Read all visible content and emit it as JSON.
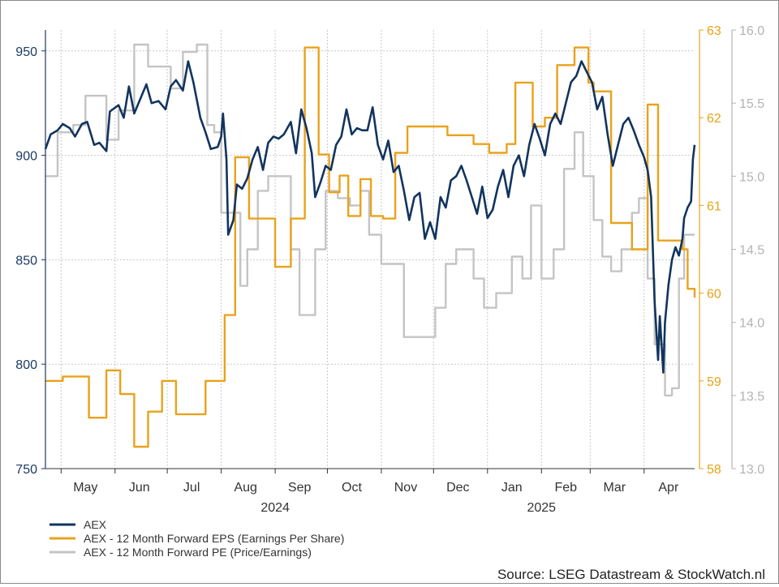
{
  "chart_data": {
    "type": "line",
    "source": "Source: LSEG Datastream & StockWatch.nl",
    "x_range": [
      "2024-04-22",
      "2025-04-30"
    ],
    "month_labels": [
      {
        "label": "May",
        "date": "2024-05-15"
      },
      {
        "label": "Jun",
        "date": "2024-06-15"
      },
      {
        "label": "Jul",
        "date": "2024-07-15"
      },
      {
        "label": "Aug",
        "date": "2024-08-15"
      },
      {
        "label": "Sep",
        "date": "2024-09-15"
      },
      {
        "label": "Oct",
        "date": "2024-10-15"
      },
      {
        "label": "Nov",
        "date": "2024-11-15"
      },
      {
        "label": "Dec",
        "date": "2024-12-15"
      },
      {
        "label": "Jan",
        "date": "2025-01-15"
      },
      {
        "label": "Feb",
        "date": "2025-02-15"
      },
      {
        "label": "Mar",
        "date": "2025-03-15"
      },
      {
        "label": "Apr",
        "date": "2025-04-15"
      }
    ],
    "month_boundaries": [
      "2024-05-01",
      "2024-06-01",
      "2024-07-01",
      "2024-08-01",
      "2024-09-01",
      "2024-10-01",
      "2024-11-01",
      "2024-12-01",
      "2025-01-01",
      "2025-02-01",
      "2025-03-01",
      "2025-04-01"
    ],
    "year_labels": [
      {
        "label": "2024",
        "date": "2024-09-01"
      },
      {
        "label": "2025",
        "date": "2025-02-01"
      }
    ],
    "axes": {
      "left": {
        "min": 750,
        "max": 960,
        "ticks": [
          750,
          800,
          850,
          900,
          950
        ],
        "color": "#1b3a63"
      },
      "right_eps": {
        "min": 58,
        "max": 63,
        "ticks": [
          58,
          59,
          60,
          61,
          62,
          63
        ],
        "color": "#e8a317"
      },
      "right_pe": {
        "min": 13.0,
        "max": 16.0,
        "ticks": [
          "13.0",
          "13.5",
          "14.0",
          "14.5",
          "15.0",
          "15.5",
          "16.0"
        ],
        "color": "#b3b3b3"
      }
    },
    "grid": true,
    "legend_position": "bottom-left",
    "series": [
      {
        "name": "AEX",
        "axis": "left",
        "color": "#12345e",
        "points": [
          [
            "2024-04-22",
            903
          ],
          [
            "2024-04-25",
            910
          ],
          [
            "2024-04-29",
            912
          ],
          [
            "2024-05-02",
            915
          ],
          [
            "2024-05-06",
            913
          ],
          [
            "2024-05-09",
            909
          ],
          [
            "2024-05-13",
            915
          ],
          [
            "2024-05-16",
            916
          ],
          [
            "2024-05-20",
            905
          ],
          [
            "2024-05-23",
            906
          ],
          [
            "2024-05-27",
            902
          ],
          [
            "2024-05-29",
            921
          ],
          [
            "2024-06-03",
            924
          ],
          [
            "2024-06-06",
            918
          ],
          [
            "2024-06-09",
            933
          ],
          [
            "2024-06-12",
            920
          ],
          [
            "2024-06-16",
            928
          ],
          [
            "2024-06-19",
            934
          ],
          [
            "2024-06-22",
            925
          ],
          [
            "2024-06-26",
            926
          ],
          [
            "2024-06-30",
            922
          ],
          [
            "2024-07-03",
            933
          ],
          [
            "2024-07-06",
            936
          ],
          [
            "2024-07-10",
            931
          ],
          [
            "2024-07-13",
            945
          ],
          [
            "2024-07-16",
            935
          ],
          [
            "2024-07-20",
            918
          ],
          [
            "2024-07-23",
            911
          ],
          [
            "2024-07-26",
            903
          ],
          [
            "2024-07-30",
            904
          ],
          [
            "2024-08-01",
            909
          ],
          [
            "2024-08-02",
            920
          ],
          [
            "2024-08-04",
            898
          ],
          [
            "2024-08-05",
            862
          ],
          [
            "2024-08-08",
            869
          ],
          [
            "2024-08-10",
            886
          ],
          [
            "2024-08-13",
            884
          ],
          [
            "2024-08-16",
            889
          ],
          [
            "2024-08-19",
            898
          ],
          [
            "2024-08-22",
            904
          ],
          [
            "2024-08-25",
            893
          ],
          [
            "2024-08-28",
            906
          ],
          [
            "2024-08-31",
            909
          ],
          [
            "2024-09-03",
            908
          ],
          [
            "2024-09-06",
            910
          ],
          [
            "2024-09-10",
            916
          ],
          [
            "2024-09-13",
            901
          ],
          [
            "2024-09-16",
            922
          ],
          [
            "2024-09-19",
            913
          ],
          [
            "2024-09-22",
            901
          ],
          [
            "2024-09-24",
            880
          ],
          [
            "2024-09-27",
            887
          ],
          [
            "2024-09-30",
            895
          ],
          [
            "2024-10-03",
            893
          ],
          [
            "2024-10-06",
            905
          ],
          [
            "2024-10-09",
            909
          ],
          [
            "2024-10-12",
            922
          ],
          [
            "2024-10-15",
            910
          ],
          [
            "2024-10-18",
            913
          ],
          [
            "2024-10-21",
            912
          ],
          [
            "2024-10-24",
            912
          ],
          [
            "2024-10-27",
            923
          ],
          [
            "2024-10-30",
            905
          ],
          [
            "2024-11-02",
            898
          ],
          [
            "2024-11-05",
            907
          ],
          [
            "2024-11-08",
            892
          ],
          [
            "2024-11-11",
            895
          ],
          [
            "2024-11-14",
            883
          ],
          [
            "2024-11-17",
            869
          ],
          [
            "2024-11-20",
            880
          ],
          [
            "2024-11-23",
            882
          ],
          [
            "2024-11-26",
            860
          ],
          [
            "2024-11-29",
            868
          ],
          [
            "2024-12-02",
            860
          ],
          [
            "2024-12-05",
            880
          ],
          [
            "2024-12-08",
            875
          ],
          [
            "2024-12-11",
            888
          ],
          [
            "2024-12-14",
            890
          ],
          [
            "2024-12-17",
            895
          ],
          [
            "2024-12-20",
            888
          ],
          [
            "2024-12-23",
            880
          ],
          [
            "2024-12-26",
            872
          ],
          [
            "2024-12-29",
            885
          ],
          [
            "2025-01-01",
            870
          ],
          [
            "2025-01-04",
            874
          ],
          [
            "2025-01-07",
            885
          ],
          [
            "2025-01-10",
            893
          ],
          [
            "2025-01-13",
            880
          ],
          [
            "2025-01-16",
            895
          ],
          [
            "2025-01-19",
            900
          ],
          [
            "2025-01-22",
            890
          ],
          [
            "2025-01-25",
            905
          ],
          [
            "2025-01-28",
            915
          ],
          [
            "2025-01-31",
            908
          ],
          [
            "2025-02-03",
            900
          ],
          [
            "2025-02-06",
            915
          ],
          [
            "2025-02-09",
            920
          ],
          [
            "2025-02-12",
            915
          ],
          [
            "2025-02-15",
            925
          ],
          [
            "2025-02-18",
            935
          ],
          [
            "2025-02-21",
            938
          ],
          [
            "2025-02-24",
            945
          ],
          [
            "2025-02-27",
            940
          ],
          [
            "2025-03-02",
            935
          ],
          [
            "2025-03-05",
            922
          ],
          [
            "2025-03-08",
            928
          ],
          [
            "2025-03-11",
            910
          ],
          [
            "2025-03-14",
            895
          ],
          [
            "2025-03-17",
            905
          ],
          [
            "2025-03-20",
            915
          ],
          [
            "2025-03-23",
            918
          ],
          [
            "2025-03-26",
            912
          ],
          [
            "2025-03-29",
            905
          ],
          [
            "2025-04-01",
            899
          ],
          [
            "2025-04-03",
            893
          ],
          [
            "2025-04-05",
            880
          ],
          [
            "2025-04-07",
            830
          ],
          [
            "2025-04-09",
            802
          ],
          [
            "2025-04-10",
            823
          ],
          [
            "2025-04-12",
            796
          ],
          [
            "2025-04-13",
            820
          ],
          [
            "2025-04-15",
            838
          ],
          [
            "2025-04-17",
            850
          ],
          [
            "2025-04-19",
            856
          ],
          [
            "2025-04-21",
            852
          ],
          [
            "2025-04-23",
            860
          ],
          [
            "2025-04-24",
            870
          ],
          [
            "2025-04-26",
            875
          ],
          [
            "2025-04-28",
            878
          ],
          [
            "2025-04-29",
            898
          ],
          [
            "2025-04-30",
            905
          ]
        ]
      },
      {
        "name": "AEX - 12 Month Forward EPS (Earnings Per Share)",
        "axis": "right_eps",
        "color": "#e9a21b",
        "step": true,
        "points": [
          [
            "2024-04-22",
            59.0
          ],
          [
            "2024-05-02",
            59.05
          ],
          [
            "2024-05-17",
            58.58
          ],
          [
            "2024-05-27",
            59.12
          ],
          [
            "2024-06-04",
            58.85
          ],
          [
            "2024-06-12",
            58.25
          ],
          [
            "2024-06-20",
            58.65
          ],
          [
            "2024-06-28",
            59.0
          ],
          [
            "2024-07-06",
            58.62
          ],
          [
            "2024-07-14",
            58.62
          ],
          [
            "2024-07-23",
            59.0
          ],
          [
            "2024-07-31",
            59.0
          ],
          [
            "2024-08-03",
            59.75
          ],
          [
            "2024-08-09",
            61.55
          ],
          [
            "2024-08-17",
            60.85
          ],
          [
            "2024-09-01",
            60.3
          ],
          [
            "2024-09-10",
            60.85
          ],
          [
            "2024-09-18",
            62.8
          ],
          [
            "2024-09-26",
            61.58
          ],
          [
            "2024-10-02",
            61.15
          ],
          [
            "2024-10-08",
            61.34
          ],
          [
            "2024-10-13",
            60.88
          ],
          [
            "2024-10-20",
            61.3
          ],
          [
            "2024-10-26",
            60.88
          ],
          [
            "2024-11-02",
            60.85
          ],
          [
            "2024-11-09",
            61.6
          ],
          [
            "2024-11-16",
            61.9
          ],
          [
            "2024-11-24",
            61.9
          ],
          [
            "2024-12-02",
            61.9
          ],
          [
            "2024-12-09",
            61.8
          ],
          [
            "2024-12-17",
            61.8
          ],
          [
            "2024-12-24",
            61.7
          ],
          [
            "2025-01-02",
            61.6
          ],
          [
            "2025-01-12",
            61.7
          ],
          [
            "2025-01-16",
            61.7
          ],
          [
            "2025-01-17",
            62.4
          ],
          [
            "2025-01-27",
            61.9
          ],
          [
            "2025-02-03",
            62.0
          ],
          [
            "2025-02-10",
            62.6
          ],
          [
            "2025-02-20",
            62.8
          ],
          [
            "2025-02-28",
            62.4
          ],
          [
            "2025-03-03",
            62.3
          ],
          [
            "2025-03-08",
            62.3
          ],
          [
            "2025-03-13",
            60.8
          ],
          [
            "2025-03-19",
            60.8
          ],
          [
            "2025-03-25",
            60.5
          ],
          [
            "2025-03-30",
            60.5
          ],
          [
            "2025-04-03",
            62.15
          ],
          [
            "2025-04-09",
            60.6
          ],
          [
            "2025-04-21",
            60.6
          ],
          [
            "2025-04-23",
            60.5
          ],
          [
            "2025-04-26",
            60.05
          ],
          [
            "2025-04-30",
            59.95
          ]
        ]
      },
      {
        "name": "AEX - 12 Month Forward PE (Price/Earnings)",
        "axis": "right_pe",
        "color": "#c4c4c4",
        "step": true,
        "points": [
          [
            "2024-04-22",
            15.0
          ],
          [
            "2024-04-29",
            15.3
          ],
          [
            "2024-05-08",
            15.35
          ],
          [
            "2024-05-15",
            15.55
          ],
          [
            "2024-05-27",
            15.25
          ],
          [
            "2024-06-03",
            15.45
          ],
          [
            "2024-06-12",
            15.9
          ],
          [
            "2024-06-20",
            15.75
          ],
          [
            "2024-06-28",
            15.75
          ],
          [
            "2024-07-03",
            15.6
          ],
          [
            "2024-07-10",
            15.85
          ],
          [
            "2024-07-18",
            15.9
          ],
          [
            "2024-07-24",
            15.35
          ],
          [
            "2024-07-28",
            15.3
          ],
          [
            "2024-08-01",
            14.75
          ],
          [
            "2024-08-06",
            14.75
          ],
          [
            "2024-08-12",
            14.25
          ],
          [
            "2024-08-16",
            14.5
          ],
          [
            "2024-08-22",
            14.9
          ],
          [
            "2024-08-28",
            15.0
          ],
          [
            "2024-09-04",
            15.0
          ],
          [
            "2024-09-10",
            14.5
          ],
          [
            "2024-09-15",
            14.05
          ],
          [
            "2024-09-20",
            14.05
          ],
          [
            "2024-09-24",
            14.5
          ],
          [
            "2024-09-30",
            14.9
          ],
          [
            "2024-10-07",
            14.85
          ],
          [
            "2024-10-14",
            14.8
          ],
          [
            "2024-10-20",
            14.9
          ],
          [
            "2024-10-25",
            14.6
          ],
          [
            "2024-11-01",
            14.4
          ],
          [
            "2024-11-07",
            14.4
          ],
          [
            "2024-11-14",
            13.9
          ],
          [
            "2024-11-24",
            13.9
          ],
          [
            "2024-12-02",
            14.1
          ],
          [
            "2024-12-08",
            14.4
          ],
          [
            "2024-12-14",
            14.5
          ],
          [
            "2024-12-24",
            14.3
          ],
          [
            "2024-12-30",
            14.1
          ],
          [
            "2025-01-06",
            14.2
          ],
          [
            "2025-01-12",
            14.2
          ],
          [
            "2025-01-15",
            14.45
          ],
          [
            "2025-01-21",
            14.3
          ],
          [
            "2025-01-26",
            14.8
          ],
          [
            "2025-02-01",
            14.3
          ],
          [
            "2025-02-08",
            14.5
          ],
          [
            "2025-02-14",
            15.05
          ],
          [
            "2025-02-20",
            15.3
          ],
          [
            "2025-02-25",
            15.0
          ],
          [
            "2025-03-03",
            14.7
          ],
          [
            "2025-03-08",
            14.45
          ],
          [
            "2025-03-13",
            14.35
          ],
          [
            "2025-03-19",
            14.5
          ],
          [
            "2025-03-25",
            14.75
          ],
          [
            "2025-03-29",
            14.85
          ],
          [
            "2025-04-03",
            14.3
          ],
          [
            "2025-04-07",
            13.85
          ],
          [
            "2025-04-09",
            13.85
          ],
          [
            "2025-04-11",
            13.85
          ],
          [
            "2025-04-13",
            13.5
          ],
          [
            "2025-04-17",
            13.55
          ],
          [
            "2025-04-21",
            14.3
          ],
          [
            "2025-04-24",
            14.6
          ],
          [
            "2025-04-30",
            14.6
          ]
        ]
      }
    ]
  }
}
